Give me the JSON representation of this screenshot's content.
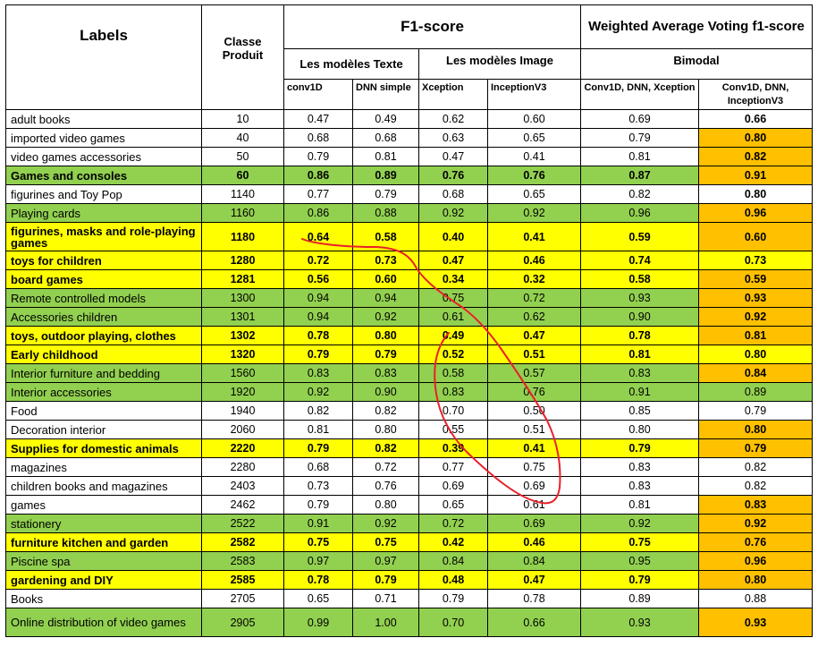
{
  "header": {
    "labels": "Labels",
    "classe_produit": "Classe Produit",
    "f1_score": "F1-score",
    "wavg_title": "Weighted Average Voting f1-score",
    "text_models": "Les modèles Texte",
    "image_models": "Les modèles Image",
    "bimodal": "Bimodal",
    "conv1d": "conv1D",
    "dnn_simple": "DNN simple",
    "xception": "Xception",
    "inceptionv3": "InceptionV3",
    "bimodal_xception": "Conv1D, DNN, Xception",
    "bimodal_inception": "Conv1D, DNN, InceptionV3"
  },
  "colors": {
    "green": "#92d050",
    "yellow": "#ffff00",
    "orange": "#ffc000",
    "annotation": "#e8202a"
  },
  "rows": [
    {
      "label": "adult books",
      "classe": "10",
      "conv1d": "0.47",
      "dnn": "0.49",
      "xception": "0.62",
      "inception": "0.60",
      "bim_x": "0.69",
      "bim_i": "0.66",
      "hl": "",
      "bold": false,
      "orange": false
    },
    {
      "label": "imported video games",
      "classe": "40",
      "conv1d": "0.68",
      "dnn": "0.68",
      "xception": "0.63",
      "inception": "0.65",
      "bim_x": "0.79",
      "bim_i": "0.80",
      "hl": "",
      "bold": false,
      "orange": true
    },
    {
      "label": "video games accessories",
      "classe": "50",
      "conv1d": "0.79",
      "dnn": "0.81",
      "xception": "0.47",
      "inception": "0.41",
      "bim_x": "0.81",
      "bim_i": "0.82",
      "hl": "",
      "bold": false,
      "orange": true
    },
    {
      "label": "Games and consoles",
      "classe": "60",
      "conv1d": "0.86",
      "dnn": "0.89",
      "xception": "0.76",
      "inception": "0.76",
      "bim_x": "0.87",
      "bim_i": "0.91",
      "hl": "green",
      "bold": true,
      "orange": true
    },
    {
      "label": "figurines and Toy Pop",
      "classe": "1140",
      "conv1d": "0.77",
      "dnn": "0.79",
      "xception": "0.68",
      "inception": "0.65",
      "bim_x": "0.82",
      "bim_i": "0.80",
      "hl": "",
      "bold": false,
      "orange": false
    },
    {
      "label": "Playing cards",
      "classe": "1160",
      "conv1d": "0.86",
      "dnn": "0.88",
      "xception": "0.92",
      "inception": "0.92",
      "bim_x": "0.96",
      "bim_i": "0.96",
      "hl": "green",
      "bold": false,
      "orange": true
    },
    {
      "label": "figurines, masks and role-playing games",
      "classe": "1180",
      "conv1d": "0.64",
      "dnn": "0.58",
      "xception": "0.40",
      "inception": "0.41",
      "bim_x": "0.59",
      "bim_i": "0.60",
      "hl": "yellow",
      "bold": true,
      "orange": true,
      "tall": true
    },
    {
      "label": "toys for children",
      "classe": "1280",
      "conv1d": "0.72",
      "dnn": "0.73",
      "xception": "0.47",
      "inception": "0.46",
      "bim_x": "0.74",
      "bim_i": "0.73",
      "hl": "yellow",
      "bold": true,
      "orange": false
    },
    {
      "label": "board games",
      "classe": "1281",
      "conv1d": "0.56",
      "dnn": "0.60",
      "xception": "0.34",
      "inception": "0.32",
      "bim_x": "0.58",
      "bim_i": "0.59",
      "hl": "yellow",
      "bold": true,
      "orange": true
    },
    {
      "label": "Remote controlled models",
      "classe": "1300",
      "conv1d": "0.94",
      "dnn": "0.94",
      "xception": "0.75",
      "inception": "0.72",
      "bim_x": "0.93",
      "bim_i": "0.93",
      "hl": "green",
      "bold": false,
      "orange": true
    },
    {
      "label": "Accessories children",
      "classe": "1301",
      "conv1d": "0.94",
      "dnn": "0.92",
      "xception": "0.61",
      "inception": "0.62",
      "bim_x": "0.90",
      "bim_i": "0.92",
      "hl": "green",
      "bold": false,
      "orange": true
    },
    {
      "label": "toys, outdoor playing, clothes",
      "classe": "1302",
      "conv1d": "0.78",
      "dnn": "0.80",
      "xception": "0.49",
      "inception": "0.47",
      "bim_x": "0.78",
      "bim_i": "0.81",
      "hl": "yellow",
      "bold": true,
      "orange": true
    },
    {
      "label": "Early childhood",
      "classe": "1320",
      "conv1d": "0.79",
      "dnn": "0.79",
      "xception": "0.52",
      "inception": "0.51",
      "bim_x": "0.81",
      "bim_i": "0.80",
      "hl": "yellow",
      "bold": true,
      "orange": false
    },
    {
      "label": "Interior furniture and bedding",
      "classe": "1560",
      "conv1d": "0.83",
      "dnn": "0.83",
      "xception": "0.58",
      "inception": "0.57",
      "bim_x": "0.83",
      "bim_i": "0.84",
      "hl": "green",
      "bold": false,
      "orange": true
    },
    {
      "label": "Interior accessories",
      "classe": "1920",
      "conv1d": "0.92",
      "dnn": "0.90",
      "xception": "0.83",
      "inception": "0.76",
      "bim_x": "0.91",
      "bim_i": "0.89",
      "hl": "green",
      "bold": false,
      "orange": false,
      "bim_i_plain": true
    },
    {
      "label": "Food",
      "classe": "1940",
      "conv1d": "0.82",
      "dnn": "0.82",
      "xception": "0.70",
      "inception": "0.50",
      "bim_x": "0.85",
      "bim_i": "0.79",
      "hl": "",
      "bold": false,
      "orange": false,
      "bim_i_plain": true
    },
    {
      "label": "Decoration interior",
      "classe": "2060",
      "conv1d": "0.81",
      "dnn": "0.80",
      "xception": "0.55",
      "inception": "0.51",
      "bim_x": "0.80",
      "bim_i": "0.80",
      "hl": "",
      "bold": false,
      "orange": true
    },
    {
      "label": "Supplies for domestic animals",
      "classe": "2220",
      "conv1d": "0.79",
      "dnn": "0.82",
      "xception": "0.39",
      "inception": "0.41",
      "bim_x": "0.79",
      "bim_i": "0.79",
      "hl": "yellow",
      "bold": true,
      "orange": true
    },
    {
      "label": "magazines",
      "classe": "2280",
      "conv1d": "0.68",
      "dnn": "0.72",
      "xception": "0.77",
      "inception": "0.75",
      "bim_x": "0.83",
      "bim_i": "0.82",
      "hl": "",
      "bold": false,
      "orange": false,
      "bim_i_plain": true
    },
    {
      "label": "children books and magazines",
      "classe": "2403",
      "conv1d": "0.73",
      "dnn": "0.76",
      "xception": "0.69",
      "inception": "0.69",
      "bim_x": "0.83",
      "bim_i": "0.82",
      "hl": "",
      "bold": false,
      "orange": false,
      "bim_i_plain": true
    },
    {
      "label": "games",
      "classe": "2462",
      "conv1d": "0.79",
      "dnn": "0.80",
      "xception": "0.65",
      "inception": "0.61",
      "bim_x": "0.81",
      "bim_i": "0.83",
      "hl": "",
      "bold": false,
      "orange": true
    },
    {
      "label": "stationery",
      "classe": "2522",
      "conv1d": "0.91",
      "dnn": "0.92",
      "xception": "0.72",
      "inception": "0.69",
      "bim_x": "0.92",
      "bim_i": "0.92",
      "hl": "green",
      "bold": false,
      "orange": true
    },
    {
      "label": "furniture kitchen and garden",
      "classe": "2582",
      "conv1d": "0.75",
      "dnn": "0.75",
      "xception": "0.42",
      "inception": "0.46",
      "bim_x": "0.75",
      "bim_i": "0.76",
      "hl": "yellow",
      "bold": true,
      "orange": true
    },
    {
      "label": "Piscine spa",
      "classe": "2583",
      "conv1d": "0.97",
      "dnn": "0.97",
      "xception": "0.84",
      "inception": "0.84",
      "bim_x": "0.95",
      "bim_i": "0.96",
      "hl": "green",
      "bold": false,
      "orange": true
    },
    {
      "label": "gardening and DIY",
      "classe": "2585",
      "conv1d": "0.78",
      "dnn": "0.79",
      "xception": "0.48",
      "inception": "0.47",
      "bim_x": "0.79",
      "bim_i": "0.80",
      "hl": "yellow",
      "bold": true,
      "orange": true
    },
    {
      "label": "Books",
      "classe": "2705",
      "conv1d": "0.65",
      "dnn": "0.71",
      "xception": "0.79",
      "inception": "0.78",
      "bim_x": "0.89",
      "bim_i": "0.88",
      "hl": "",
      "bold": false,
      "orange": false,
      "bim_i_plain": true
    },
    {
      "label": "Online distribution of video games",
      "classe": "2905",
      "conv1d": "0.99",
      "dnn": "1.00",
      "xception": "0.70",
      "inception": "0.66",
      "bim_x": "0.93",
      "bim_i": "0.93",
      "hl": "green",
      "bold": false,
      "orange": true,
      "tall": true
    }
  ]
}
